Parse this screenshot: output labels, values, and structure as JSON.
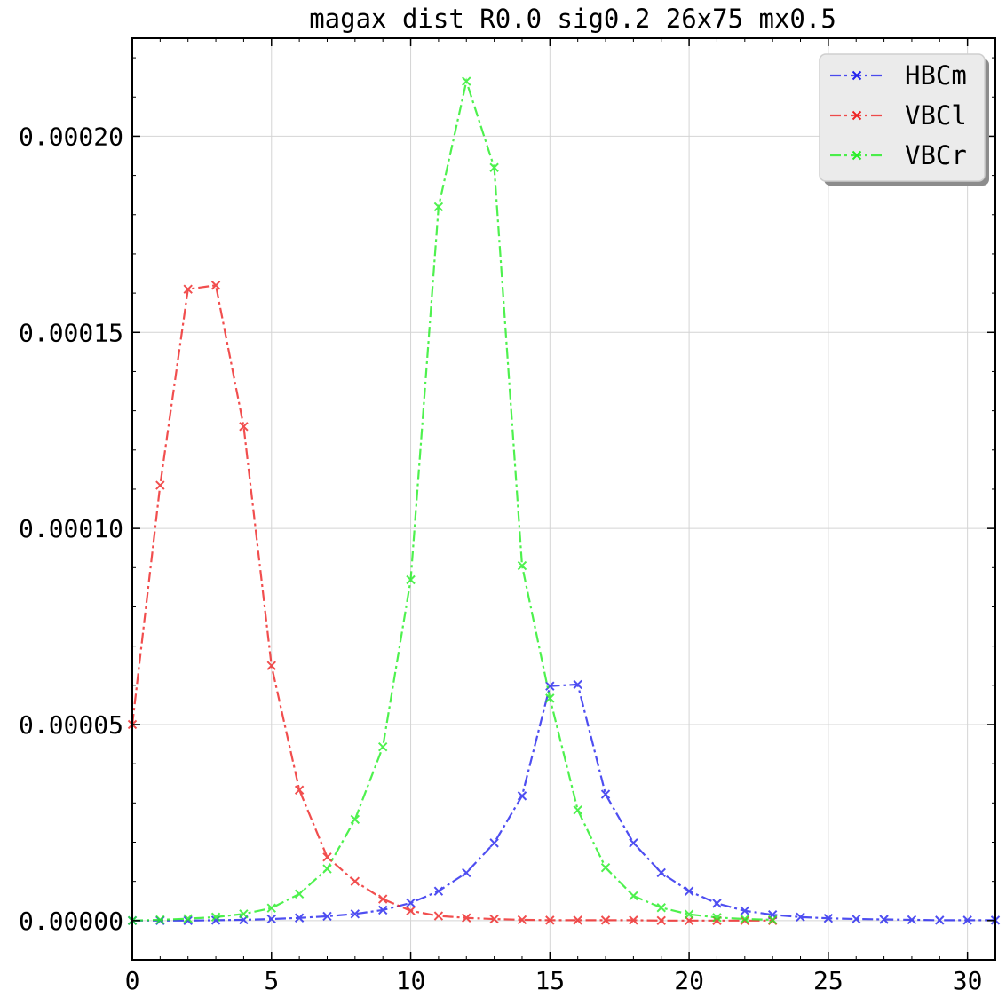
{
  "chart_data": {
    "type": "line",
    "title": "magax dist R0.0 sig0.2 26x75 mx0.5",
    "xlabel": "",
    "ylabel": "",
    "xlim": [
      0,
      31
    ],
    "ylim": [
      -1e-05,
      0.000225
    ],
    "grid": true,
    "legend_position": "top-right",
    "x_ticks": [
      0,
      5,
      10,
      15,
      20,
      25,
      30
    ],
    "x_tick_labels": [
      "0",
      "5",
      "10",
      "15",
      "20",
      "25",
      "30"
    ],
    "y_ticks": [
      0,
      5e-05,
      0.0001,
      0.00015,
      0.0002
    ],
    "y_tick_labels": [
      "0.00000",
      "0.00005",
      "0.00010",
      "0.00015",
      "0.00020"
    ],
    "series": [
      {
        "name": "HBCm",
        "color": "#2222ee",
        "x": [
          0,
          1,
          2,
          3,
          4,
          5,
          6,
          7,
          8,
          9,
          10,
          11,
          12,
          13,
          14,
          15,
          16,
          17,
          18,
          19,
          20,
          21,
          22,
          23,
          24,
          25,
          26,
          27,
          28,
          29,
          30,
          31
        ],
        "values": [
          0,
          0,
          0,
          1e-07,
          2e-07,
          4e-07,
          7e-07,
          1.1e-06,
          1.7e-06,
          2.7e-06,
          4.5e-06,
          7.5e-06,
          1.22e-05,
          1.98e-05,
          3.18e-05,
          5.98e-05,
          6.02e-05,
          3.22e-05,
          1.98e-05,
          1.22e-05,
          7.5e-06,
          4.4e-06,
          2.5e-06,
          1.5e-06,
          9e-07,
          6e-07,
          4e-07,
          3e-07,
          2e-07,
          1e-07,
          1e-07,
          1e-07
        ]
      },
      {
        "name": "VBCl",
        "color": "#ee2222",
        "x": [
          0,
          1,
          2,
          3,
          4,
          5,
          6,
          7,
          8,
          9,
          10,
          11,
          12,
          13,
          14,
          15,
          16,
          17,
          18,
          19,
          20,
          21,
          22,
          23
        ],
        "values": [
          5e-05,
          0.000111,
          0.000161,
          0.000162,
          0.000126,
          6.5e-05,
          3.33e-05,
          1.62e-05,
          1e-05,
          5.5e-06,
          2.5e-06,
          1.2e-06,
          7e-07,
          4e-07,
          2e-07,
          1e-07,
          1e-07,
          1e-07,
          1e-07,
          0,
          0,
          0,
          0,
          0
        ]
      },
      {
        "name": "VBCr",
        "color": "#22ee22",
        "x": [
          0,
          1,
          2,
          3,
          4,
          5,
          6,
          7,
          8,
          9,
          10,
          11,
          12,
          13,
          14,
          15,
          16,
          17,
          18,
          19,
          20,
          21,
          22,
          23
        ],
        "values": [
          0,
          2e-07,
          5e-07,
          9e-07,
          1.7e-06,
          3.2e-06,
          6.8e-06,
          1.32e-05,
          2.58e-05,
          4.43e-05,
          8.69e-05,
          0.000182,
          0.000214,
          0.000192,
          9.05e-05,
          5.67e-05,
          2.82e-05,
          1.35e-05,
          6.3e-06,
          3.3e-06,
          1.6e-06,
          8e-07,
          4e-07,
          2e-07
        ]
      }
    ]
  }
}
